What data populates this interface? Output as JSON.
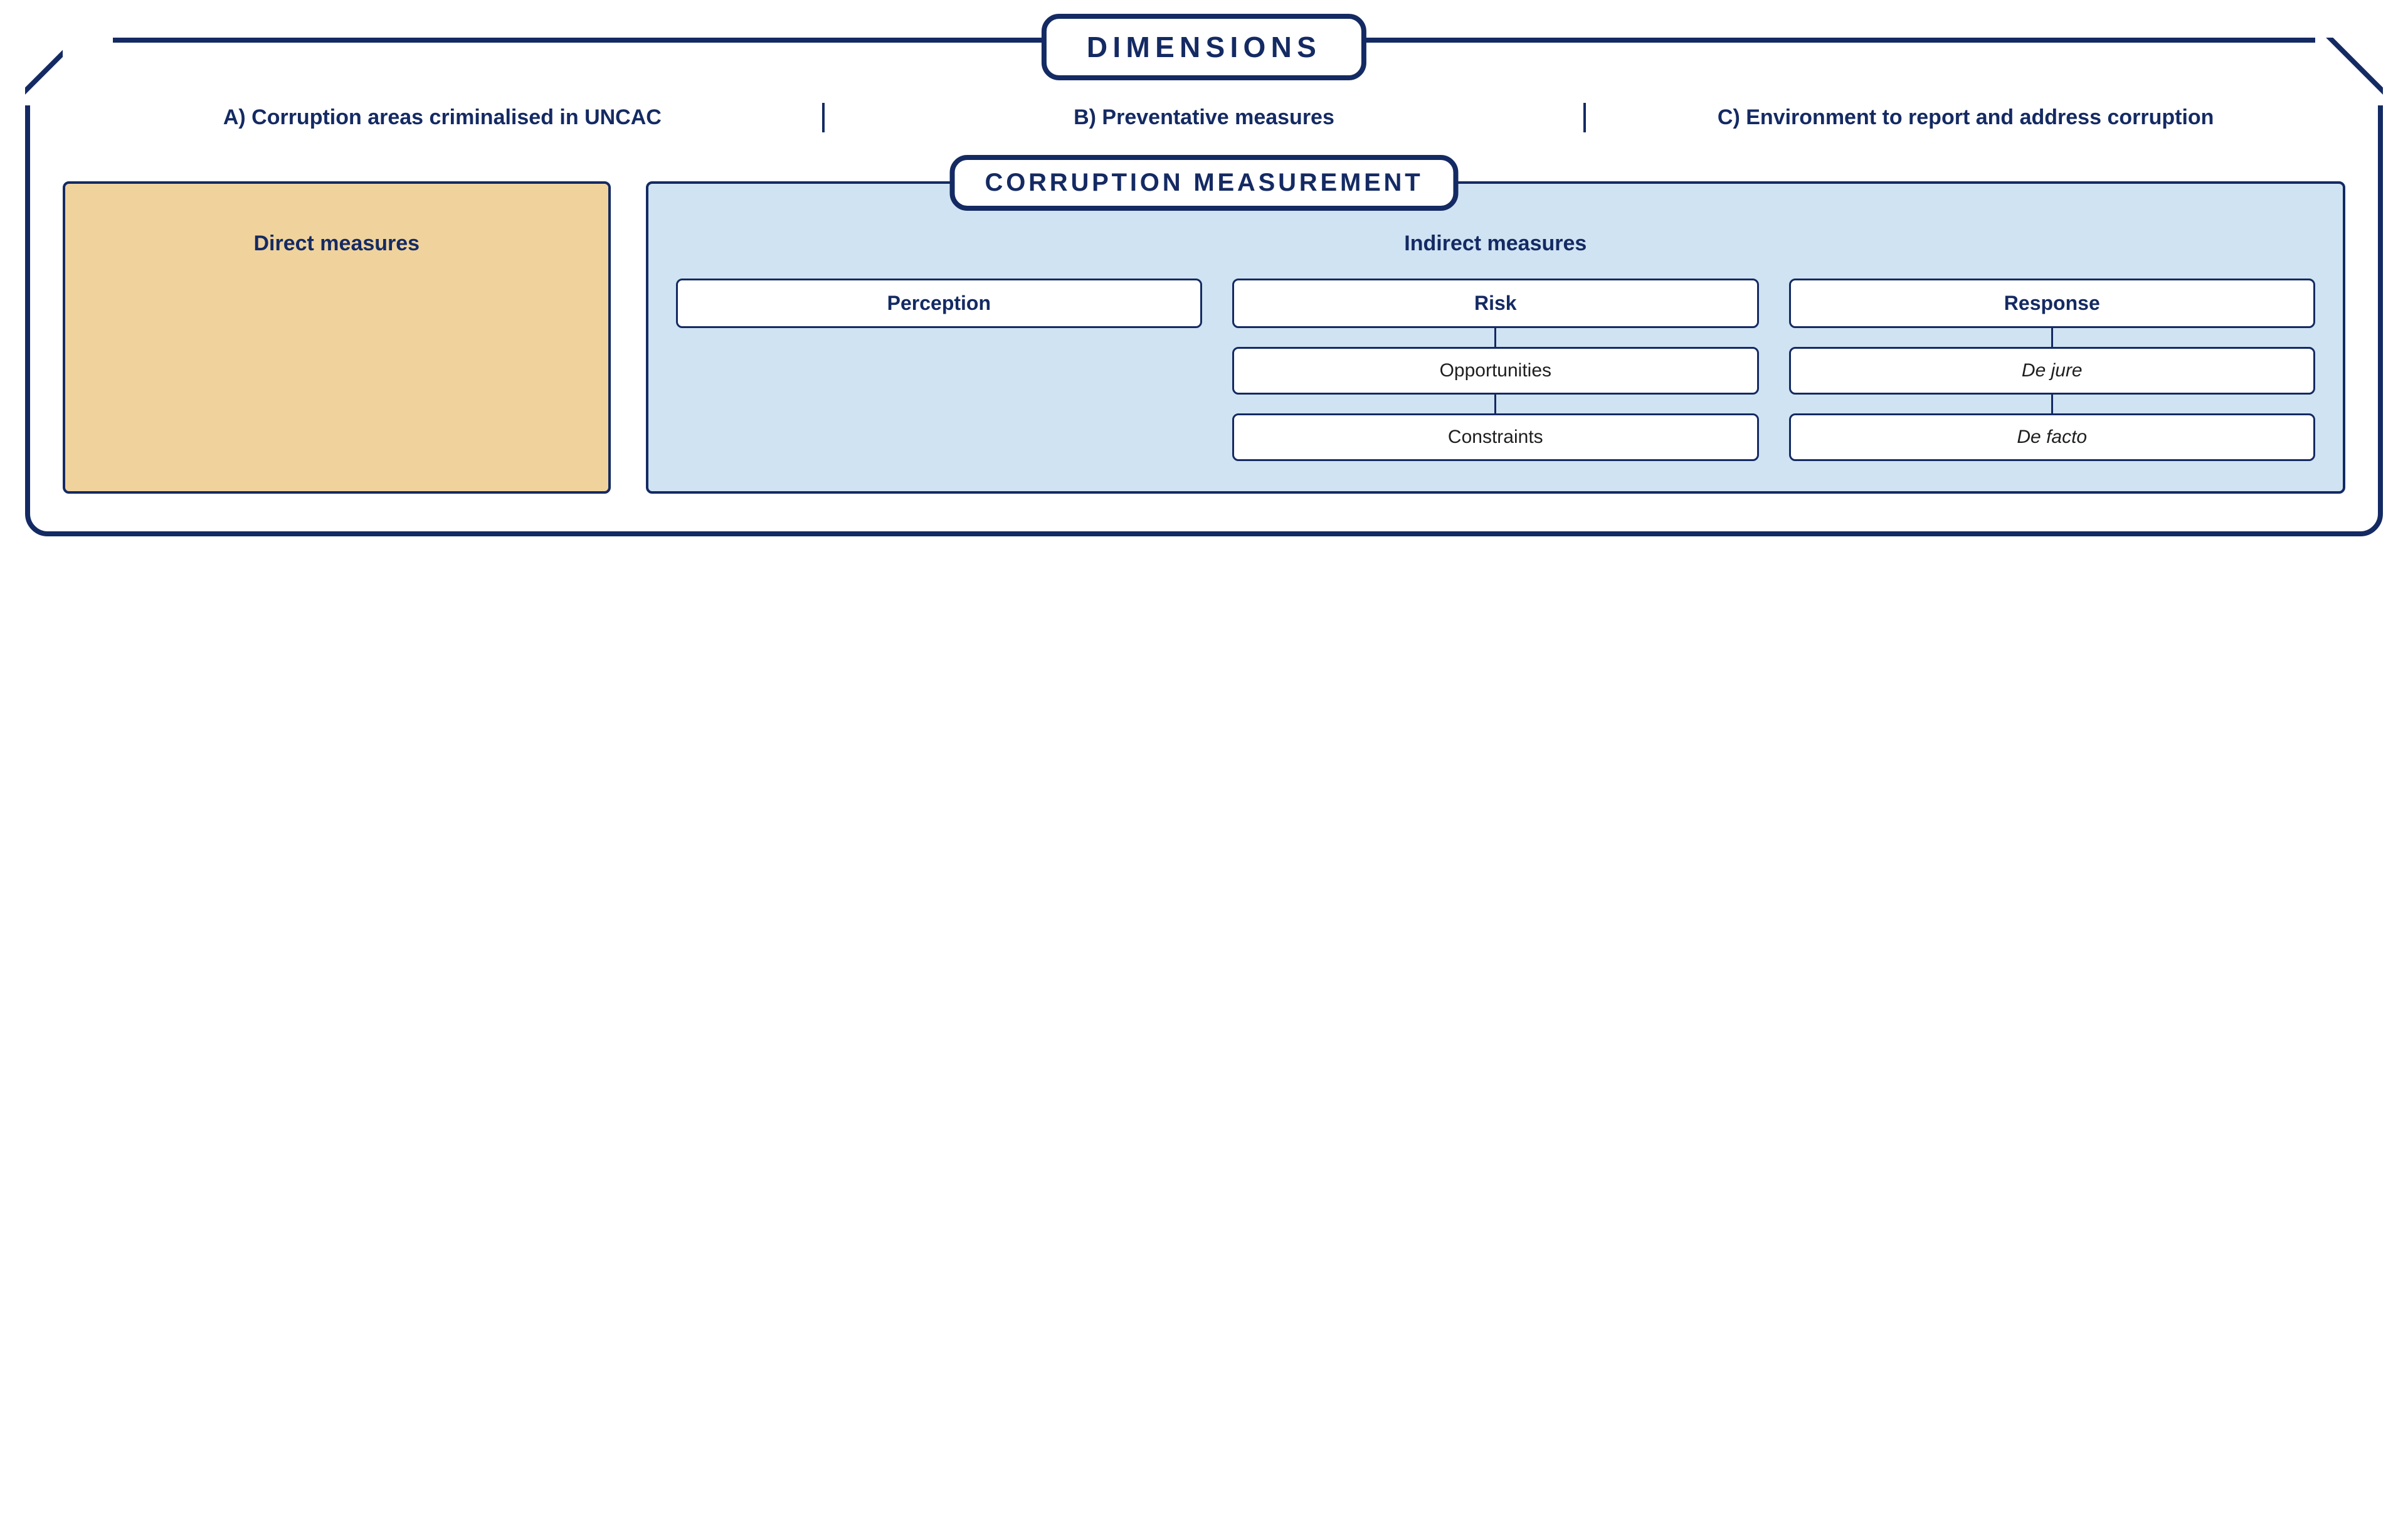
{
  "diagram": {
    "type": "infographic",
    "background_color": "#ffffff",
    "stroke_color": "#142a63",
    "stroke_width_outer": 8,
    "stroke_width_inner": 4,
    "corner_radius_outer": 36,
    "corner_radius_pill": 28,
    "corner_radius_box": 10,
    "title_fontsize": 46,
    "subtitle_fontsize": 40,
    "dimension_fontsize": 34,
    "section_title_fontsize": 34,
    "node_fontsize": 30,
    "node_head_fontsize": 32,
    "letter_spacing_title": "0.18em",
    "letter_spacing_subtitle": "0.12em"
  },
  "titles": {
    "dimensions": "DIMENSIONS",
    "measurement": "CORRUPTION MEASUREMENT"
  },
  "dimensions": {
    "a": "A) Corruption areas criminalised in UNCAC",
    "b": "B) Preventative measures",
    "c": "C) Environment to report and address corruption"
  },
  "direct": {
    "title": "Direct measures",
    "fill_color": "#f0d39c"
  },
  "indirect": {
    "title": "Indirect measures",
    "fill_color": "#d0e3f2",
    "columns": [
      {
        "head": "Perception",
        "children": []
      },
      {
        "head": "Risk",
        "children": [
          {
            "label": "Opportunities",
            "italic": false
          },
          {
            "label": "Constraints",
            "italic": false
          }
        ]
      },
      {
        "head": "Response",
        "children": [
          {
            "label": "De jure",
            "italic": true
          },
          {
            "label": "De facto",
            "italic": true
          }
        ]
      }
    ]
  }
}
